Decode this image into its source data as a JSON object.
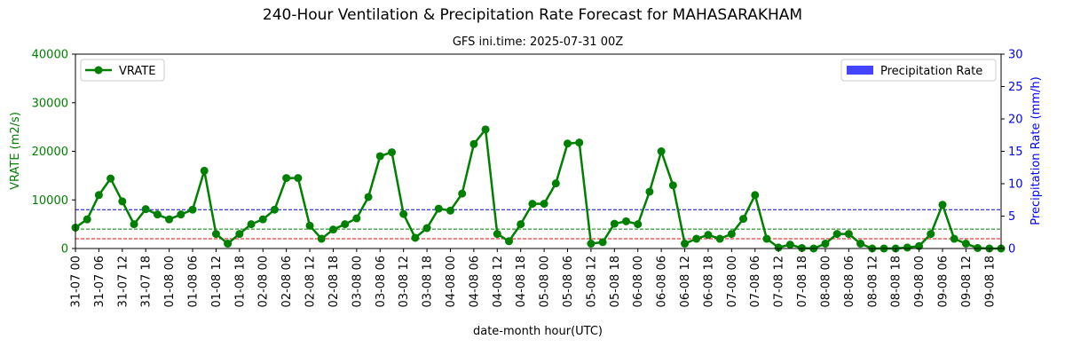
{
  "chart_data": {
    "type": "line",
    "title": "240-Hour Ventilation & Precipitation Rate Forecast for MAHASARAKHAM",
    "subtitle": "GFS ini.time: 2025-07-31 00Z",
    "xlabel": "date-month hour(UTC)",
    "ylabel_left": "VRATE (m2/s)",
    "ylabel_right": "Precipitation Rate (mm/h)",
    "ylim_left": [
      0,
      40000
    ],
    "ylim_right": [
      0,
      30
    ],
    "yticks_left": [
      "0",
      "10000",
      "20000",
      "30000",
      "40000"
    ],
    "yticks_right": [
      "0",
      "5",
      "10",
      "15",
      "20",
      "25",
      "30"
    ],
    "xticks": [
      "31-07 00",
      "31-07 06",
      "31-07 12",
      "31-07 18",
      "01-08 00",
      "01-08 06",
      "01-08 12",
      "01-08 18",
      "02-08 00",
      "02-08 06",
      "02-08 12",
      "02-08 18",
      "03-08 00",
      "03-08 06",
      "03-08 12",
      "03-08 18",
      "04-08 00",
      "04-08 06",
      "04-08 12",
      "04-08 18",
      "05-08 00",
      "05-08 06",
      "05-08 12",
      "05-08 18",
      "06-08 00",
      "06-08 06",
      "06-08 12",
      "06-08 18",
      "07-08 00",
      "07-08 06",
      "07-08 12",
      "07-08 18",
      "08-08 00",
      "08-08 06",
      "08-08 12",
      "08-08 18",
      "09-08 00",
      "09-08 06",
      "09-08 12",
      "09-08 18"
    ],
    "x_step_hours": 3,
    "series": [
      {
        "name": "VRATE",
        "color": "#008000",
        "values": [
          4300,
          6000,
          11000,
          14400,
          9700,
          5000,
          8100,
          7000,
          6000,
          7000,
          8000,
          16000,
          3000,
          1000,
          3000,
          5000,
          6000,
          8000,
          14500,
          14500,
          4700,
          2000,
          3900,
          5000,
          6200,
          10600,
          19000,
          19800,
          7100,
          2200,
          4200,
          8200,
          7800,
          11300,
          21500,
          24500,
          3000,
          1500,
          5000,
          9200,
          9200,
          13400,
          21600,
          21800,
          1000,
          1300,
          5100,
          5600,
          5000,
          11700,
          20000,
          13000,
          1000,
          2000,
          2800,
          2000,
          3000,
          6100,
          11000,
          2000,
          200,
          800,
          100,
          0,
          1000,
          3000,
          3000,
          1000,
          0,
          0,
          0,
          200,
          500,
          3000,
          9000,
          2000,
          1000,
          100,
          0,
          0
        ],
        "legend": "top-left"
      },
      {
        "name": "Precipitation Rate",
        "color": "#4444ff",
        "values": [],
        "legend": "top-right"
      }
    ],
    "thresholds": [
      {
        "value": 8000,
        "color": "#0000ff",
        "style": "dashed"
      },
      {
        "value": 4000,
        "color": "#008000",
        "style": "dashed"
      },
      {
        "value": 2000,
        "color": "#ff0000",
        "style": "dashed"
      }
    ],
    "grid": false,
    "colors": {
      "left_axis": "#008000",
      "right_axis": "#0000ff",
      "line": "#008000",
      "bar": "#4444ff"
    }
  }
}
